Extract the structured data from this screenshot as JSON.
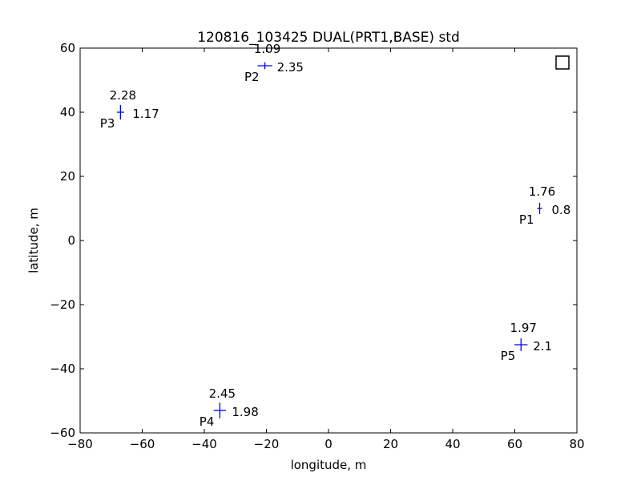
{
  "chart_data": {
    "type": "scatter",
    "title": "120816_103425 DUAL(PRT1,BASE) std",
    "xlabel": "longitude, m",
    "ylabel": "latitude, m",
    "xlim": [
      -80,
      80
    ],
    "ylim": [
      -60,
      60
    ],
    "xticks": [
      -80,
      -60,
      -40,
      -20,
      0,
      20,
      40,
      60,
      80
    ],
    "yticks": [
      -60,
      -40,
      -20,
      0,
      20,
      40,
      60
    ],
    "xtick_labels": [
      "−80",
      "−60",
      "−40",
      "−20",
      "0",
      "20",
      "40",
      "60",
      "80"
    ],
    "ytick_labels": [
      "−60",
      "−40",
      "−20",
      "0",
      "20",
      "40",
      "60"
    ],
    "grid": false,
    "legend": "top-right, empty marker box",
    "marker_color": "#0000ff",
    "points": [
      {
        "label": "P1",
        "x": 68,
        "y": 10,
        "std_x": 0.8,
        "std_y": 1.76,
        "std_x_label": "0.8",
        "std_y_label": "1.76"
      },
      {
        "label": "P2",
        "x": -20.5,
        "y": 54.5,
        "std_x": 2.35,
        "std_y": 1.09,
        "std_x_label": "2.35",
        "std_y_label": "1.09"
      },
      {
        "label": "P3",
        "x": -67,
        "y": 40,
        "std_x": 1.17,
        "std_y": 2.28,
        "std_x_label": "1.17",
        "std_y_label": "2.28"
      },
      {
        "label": "P4",
        "x": -35,
        "y": -53,
        "std_x": 1.98,
        "std_y": 2.45,
        "std_x_label": "1.98",
        "std_y_label": "2.45"
      },
      {
        "label": "P5",
        "x": 62,
        "y": -32.5,
        "std_x": 2.1,
        "std_y": 1.97,
        "std_x_label": "2.1",
        "std_y_label": "1.97"
      }
    ]
  }
}
